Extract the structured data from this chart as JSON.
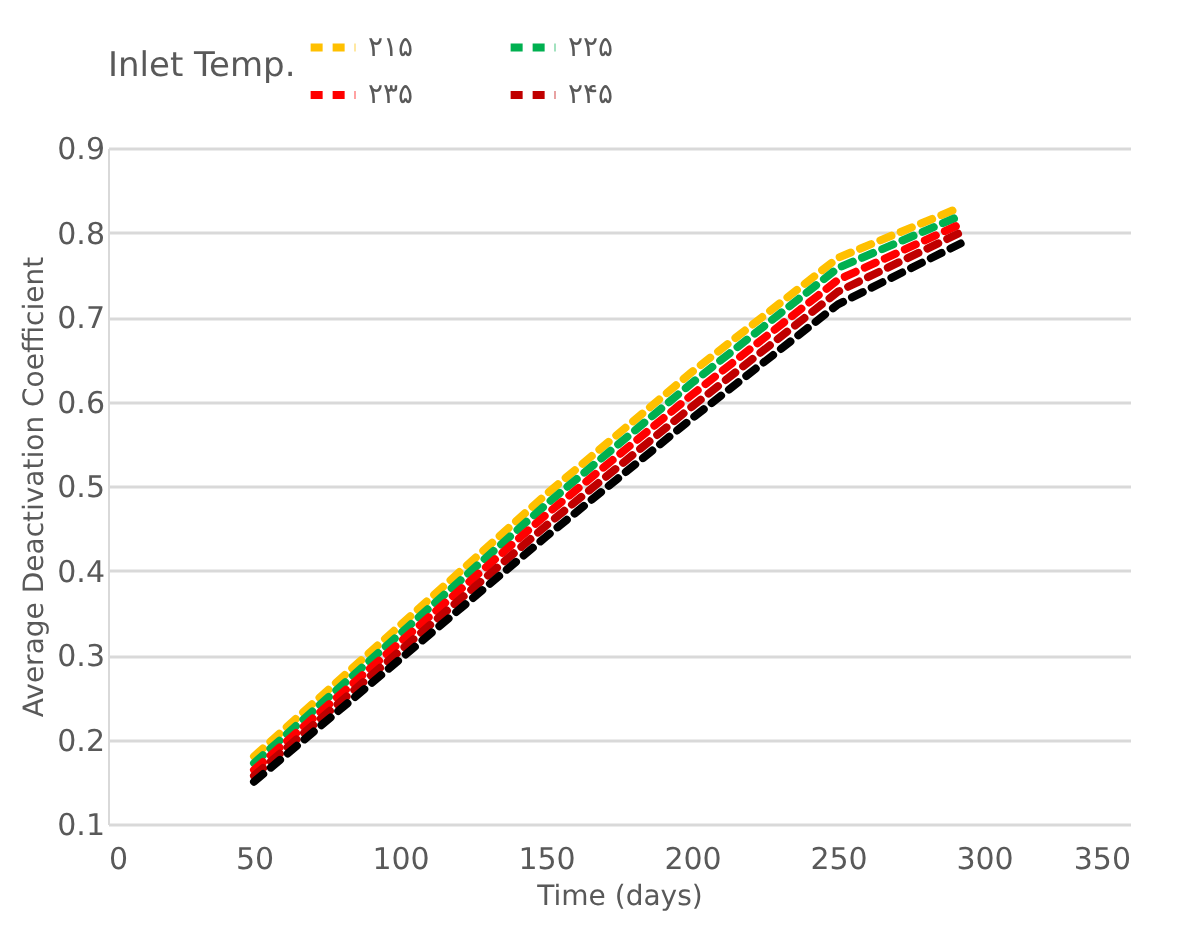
{
  "chart_data": {
    "type": "line",
    "xlabel": "Time (days)",
    "ylabel": "Average Deactivation Coefficient",
    "legend_title": "Inlet Temp.",
    "legend": "top",
    "grid": "y",
    "line_style": "dashed",
    "marker": "none",
    "x": [
      50,
      100,
      150,
      200,
      250,
      292
    ],
    "xlim": [
      0,
      350
    ],
    "xticks": [
      0,
      50,
      100,
      150,
      200,
      250,
      300,
      350
    ],
    "ylim": [
      0.1,
      0.9
    ],
    "yticks": [
      0.1,
      0.2,
      0.3,
      0.4,
      0.5,
      0.6,
      0.7,
      0.8,
      0.9
    ],
    "series": [
      {
        "name": "۲۱۵",
        "color": "#ffc000",
        "values": [
          0.18,
          0.335,
          0.49,
          0.635,
          0.77,
          0.83
        ]
      },
      {
        "name": "۲۲۵",
        "color": "#00b050",
        "values": [
          0.172,
          0.325,
          0.478,
          0.622,
          0.758,
          0.82
        ]
      },
      {
        "name": "۲۳۵",
        "color": "#ff0000",
        "values": [
          0.164,
          0.315,
          0.466,
          0.608,
          0.744,
          0.81
        ]
      },
      {
        "name": "۲۴۵",
        "color": "#c00000",
        "values": [
          0.157,
          0.305,
          0.453,
          0.594,
          0.73,
          0.8
        ]
      },
      {
        "color": "#000000",
        "values": [
          0.15,
          0.295,
          0.44,
          0.58,
          0.715,
          0.787
        ]
      }
    ]
  }
}
